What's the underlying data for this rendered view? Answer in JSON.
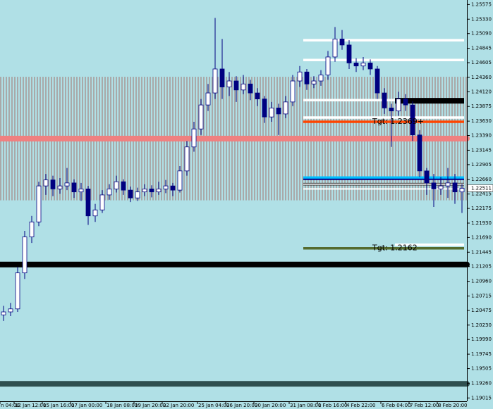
{
  "chart_data": {
    "type": "candlestick",
    "open": [
      1.204,
      1.2045,
      1.205,
      1.211,
      1.217,
      1.2195,
      1.2255,
      1.2265,
      1.225,
      1.2255,
      1.226,
      1.2245,
      1.225,
      1.2205,
      1.2215,
      1.224,
      1.225,
      1.2262,
      1.2248,
      1.2235,
      1.2245,
      1.225,
      1.2245,
      1.225,
      1.2255,
      1.2248,
      1.228,
      1.232,
      1.235,
      1.239,
      1.241,
      1.245,
      1.242,
      1.243,
      1.2415,
      1.2425,
      1.241,
      1.24,
      1.237,
      1.2385,
      1.2375,
      1.2395,
      1.243,
      1.2445,
      1.2425,
      1.243,
      1.244,
      1.247,
      1.25,
      1.249,
      1.246,
      1.2455,
      1.246,
      1.245,
      1.241,
      1.2385,
      1.238,
      1.24,
      1.239,
      1.234,
      1.228,
      1.226,
      1.225,
      1.2255,
      1.226,
      1.2245
    ],
    "high": [
      1.2055,
      1.206,
      1.212,
      1.218,
      1.2205,
      1.2262,
      1.2275,
      1.2272,
      1.2268,
      1.2285,
      1.2266,
      1.226,
      1.2255,
      1.2225,
      1.2248,
      1.2258,
      1.2272,
      1.2266,
      1.2254,
      1.2252,
      1.2258,
      1.2256,
      1.2262,
      1.2265,
      1.226,
      1.2288,
      1.233,
      1.2362,
      1.24,
      1.2425,
      1.2535,
      1.25,
      1.2445,
      1.2438,
      1.244,
      1.2432,
      1.2418,
      1.2405,
      1.2395,
      1.2392,
      1.2405,
      1.244,
      1.2455,
      1.245,
      1.2438,
      1.2448,
      1.248,
      1.252,
      1.2515,
      1.2498,
      1.2468,
      1.247,
      1.2466,
      1.2455,
      1.2418,
      1.2392,
      1.2412,
      1.2408,
      1.2396,
      1.2348,
      1.2285,
      1.2275,
      1.227,
      1.2285,
      1.2275,
      1.2258
    ],
    "low": [
      1.203,
      1.2038,
      1.2045,
      1.21,
      1.216,
      1.2188,
      1.224,
      1.2238,
      1.2242,
      1.2248,
      1.2235,
      1.223,
      1.219,
      1.2195,
      1.221,
      1.2232,
      1.2244,
      1.224,
      1.2228,
      1.223,
      1.2238,
      1.2236,
      1.224,
      1.2243,
      1.2238,
      1.2244,
      1.2272,
      1.2312,
      1.234,
      1.238,
      1.24,
      1.24,
      1.2405,
      1.2395,
      1.2408,
      1.2398,
      1.2388,
      1.236,
      1.2362,
      1.234,
      1.2368,
      1.2388,
      1.242,
      1.2415,
      1.2418,
      1.2422,
      1.2432,
      1.2462,
      1.2482,
      1.245,
      1.2445,
      1.2448,
      1.244,
      1.24,
      1.2375,
      1.232,
      1.2372,
      1.238,
      1.233,
      1.227,
      1.224,
      1.222,
      1.224,
      1.2235,
      1.2225,
      1.221
    ],
    "close": [
      1.2045,
      1.205,
      1.211,
      1.217,
      1.2195,
      1.2255,
      1.2265,
      1.225,
      1.2255,
      1.226,
      1.2245,
      1.225,
      1.2205,
      1.2215,
      1.224,
      1.225,
      1.2262,
      1.2248,
      1.2235,
      1.2245,
      1.225,
      1.2245,
      1.225,
      1.2255,
      1.2248,
      1.228,
      1.232,
      1.235,
      1.239,
      1.241,
      1.245,
      1.242,
      1.243,
      1.2415,
      1.2425,
      1.241,
      1.24,
      1.237,
      1.2385,
      1.2375,
      1.2395,
      1.243,
      1.2445,
      1.2425,
      1.243,
      1.244,
      1.247,
      1.25,
      1.249,
      1.246,
      1.2455,
      1.246,
      1.245,
      1.241,
      1.2385,
      1.238,
      1.24,
      1.239,
      1.234,
      1.228,
      1.226,
      1.225,
      1.2255,
      1.226,
      1.2245,
      1.22511
    ],
    "categories": [
      "n 04:00",
      null,
      "12 Jan 12:00",
      null,
      null,
      null,
      "15 Jan 16:00",
      null,
      null,
      null,
      "17 Jan 00:00",
      null,
      null,
      null,
      null,
      "18 Jan 08:00",
      null,
      null,
      null,
      "19 Jan 20:00",
      null,
      null,
      null,
      "22 Jan 20:00",
      null,
      null,
      null,
      null,
      "25 Jan 04:00",
      null,
      null,
      null,
      "26 Jan 20:00",
      null,
      null,
      null,
      "30 Jan 20:00",
      null,
      null,
      null,
      null,
      "31 Jan 08:00",
      null,
      null,
      null,
      "1 Feb 16:00",
      null,
      null,
      null,
      "4 Feb 22:00",
      null,
      null,
      null,
      null,
      "6 Feb 04:00",
      null,
      null,
      null,
      "7 Feb 12:00",
      null,
      null,
      null,
      "8 Feb 20:00",
      null,
      null,
      null
    ],
    "up_color": "#ffffff",
    "down_color": "#000080",
    "wick_color": "#000080",
    "ylim": [
      1.1896,
      1.2565
    ],
    "yticks": [
      1.25575,
      {
        "value": 1.2533,
        "label": "1.25330"
      },
      {
        "value": 1.2509,
        "label": "1.25090"
      },
      1.24845,
      1.24605,
      {
        "value": 1.2436,
        "label": "1.24360"
      },
      {
        "value": 1.2412,
        "label": "1.24120"
      },
      1.23875,
      {
        "value": 1.2363,
        "label": "1.23630"
      },
      {
        "value": 1.2339,
        "label": "1.23390"
      },
      1.23145,
      1.22905,
      {
        "value": 1.2266,
        "label": "1.22660"
      },
      1.22415,
      1.22175,
      {
        "value": 1.2193,
        "label": "1.21930"
      },
      {
        "value": 1.2169,
        "label": "1.21690"
      },
      1.21445,
      1.21205,
      {
        "value": 1.2096,
        "label": "1.20960"
      },
      1.20715,
      1.20475,
      {
        "value": 1.2023,
        "label": "1.20230"
      },
      {
        "value": 1.1999,
        "label": "1.19990"
      },
      1.19745,
      1.19505,
      {
        "value": 1.1926,
        "label": "1.19260"
      },
      1.19015
    ],
    "current_price": 1.22511,
    "zone": {
      "low": 1.2231,
      "high": 1.2437,
      "color": "#a9a9a9"
    },
    "levels": [
      {
        "price": 1.2334,
        "color": "#f08080",
        "style": "thick"
      },
      {
        "price": 1.2124,
        "color": "#000000",
        "style": "thick"
      },
      {
        "price": 1.1925,
        "color": "#2f4f4f",
        "style": "thick"
      },
      {
        "price": 1.2498,
        "color": "#ffffff",
        "style": "medium",
        "start": 43
      },
      {
        "price": 1.2465,
        "color": "#ffffff",
        "style": "medium",
        "start": 43
      },
      {
        "price": 1.2398,
        "color": "#ffffff",
        "style": "medium",
        "start": 43
      },
      {
        "price": 1.2397,
        "color": "#000000",
        "style": "thick",
        "start": 56
      },
      {
        "price": 1.2369,
        "color": "#ffffff",
        "style": "medium",
        "start": 43
      },
      {
        "price": 1.2362,
        "color": "#ff4500",
        "style": "medium",
        "start": 43
      },
      {
        "price": 1.2269,
        "color": "#00bfff",
        "style": "medium",
        "start": 43
      },
      {
        "price": 1.2266,
        "color": "#00008b",
        "style": "thin",
        "start": 43
      },
      {
        "price": 1.2258,
        "color": "#000000",
        "style": "medium",
        "start": 43
      },
      {
        "price": 1.2258,
        "color": "#ffffff",
        "style": "thin",
        "start": 43
      },
      {
        "price": 1.225,
        "color": "#ffffff",
        "style": "thin",
        "start": 43
      },
      {
        "price": 1.2157,
        "color": "#ffffff",
        "style": "medium",
        "start": 56
      },
      {
        "price": 1.2151,
        "color": "#556b2f",
        "style": "medium",
        "start": 43
      }
    ],
    "annotations": [
      {
        "text": "Tgt: 1.2369+",
        "price": 1.2362
      },
      {
        "text": "Tgt: 1.2162",
        "price": 1.2151
      }
    ],
    "background": "#b0e0e6"
  }
}
